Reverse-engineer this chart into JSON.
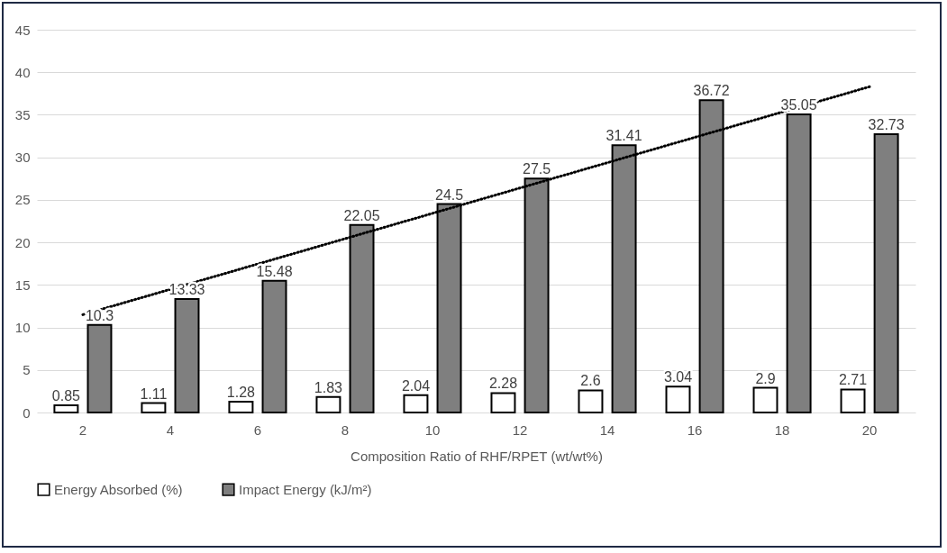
{
  "chart_data": {
    "type": "bar",
    "xlabel": "Composition Ratio of RHF/RPET (wt/wt%)",
    "categories": [
      "2",
      "4",
      "6",
      "8",
      "10",
      "12",
      "14",
      "16",
      "18",
      "20"
    ],
    "series": [
      {
        "name": "Energy Absorbed (%)",
        "color": "#ffffff",
        "values": [
          0.85,
          1.11,
          1.28,
          1.83,
          2.04,
          2.28,
          2.6,
          3.04,
          2.9,
          2.71
        ],
        "value_labels": [
          "0.85",
          "1.11",
          "1.28",
          "1.83",
          "2.04",
          "2.28",
          "2.6",
          "3.04",
          "2.9",
          "2.71"
        ]
      },
      {
        "name": "Impact Energy (kJ/m²)",
        "color": "#7f7f7f",
        "values": [
          10.3,
          13.33,
          15.48,
          22.05,
          24.5,
          27.5,
          31.41,
          36.72,
          35.05,
          32.73
        ],
        "value_labels": [
          "10.3",
          "13.33",
          "15.48",
          "22.05",
          "24.5",
          "27.5",
          "31.41",
          "36.72",
          "35.05",
          "32.73"
        ]
      },
      {
        "type": "line",
        "color": "#000000",
        "line_style": "dotted",
        "x": [
          "2",
          "20"
        ],
        "values": [
          11.5,
          38.3
        ]
      }
    ],
    "ylim": [
      0,
      45
    ],
    "yticks": [
      0,
      5,
      10,
      15,
      20,
      25,
      30,
      35,
      40,
      45
    ],
    "grid": "y",
    "legend": "bottom"
  }
}
